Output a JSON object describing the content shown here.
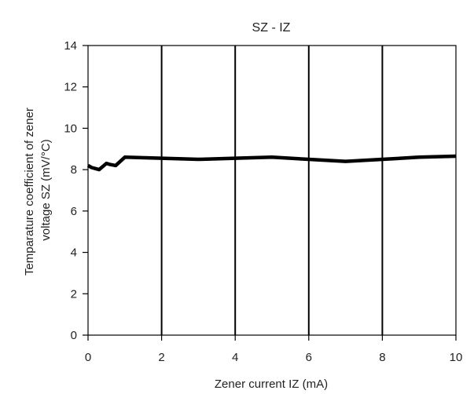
{
  "chart_data": {
    "type": "line",
    "title": "SZ - IZ",
    "xlabel": "Zener current IZ (mA)",
    "ylabel_lines": [
      "Temparature coefficient of zener",
      "voltage SZ (mV/°C)"
    ],
    "xlim": [
      0,
      10
    ],
    "ylim": [
      0,
      14
    ],
    "x_ticks": [
      0,
      2,
      4,
      6,
      8,
      10
    ],
    "y_ticks": [
      0,
      2,
      4,
      6,
      8,
      10,
      12,
      14
    ],
    "grid": {
      "vertical": "major x ticks",
      "horizontal": "none"
    },
    "series": [
      {
        "color": "#000000",
        "x": [
          0,
          0.1,
          0.3,
          0.5,
          0.6,
          0.75,
          1.0,
          2.0,
          3.0,
          4.0,
          5.0,
          6.0,
          7.0,
          8.0,
          9.0,
          10.0
        ],
        "y": [
          8.2,
          8.1,
          8.0,
          8.3,
          8.25,
          8.2,
          8.6,
          8.55,
          8.5,
          8.55,
          8.6,
          8.5,
          8.4,
          8.5,
          8.6,
          8.65
        ]
      }
    ]
  }
}
